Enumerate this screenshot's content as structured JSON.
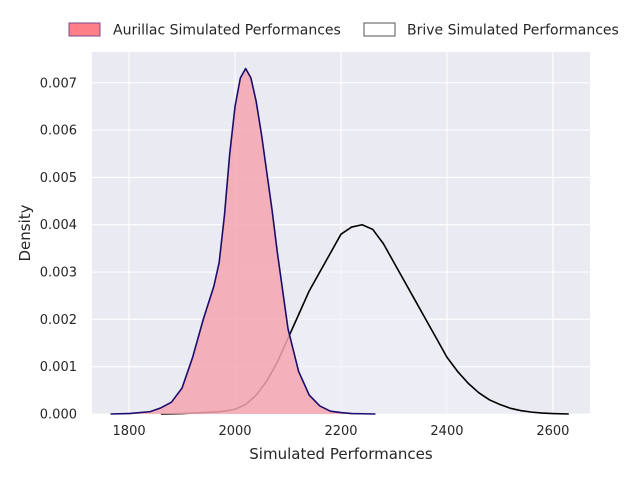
{
  "chart_data": {
    "type": "area",
    "xlabel": "Simulated Performances",
    "ylabel": "Density",
    "xlim": [
      1730,
      2670
    ],
    "ylim": [
      0,
      0.00765
    ],
    "x_ticks": [
      1800,
      2000,
      2200,
      2400,
      2600
    ],
    "y_ticks": [
      0.0,
      0.001,
      0.002,
      0.003,
      0.004,
      0.005,
      0.006,
      0.007
    ],
    "grid": true,
    "legend_position": "top-center",
    "series": [
      {
        "name": "Aurillac Simulated Performances",
        "fill_color": "#f4a6b0",
        "legend_swatch_color": "#ff7f86",
        "line_color": "#1a0d6e",
        "filled": true,
        "x": [
          1765,
          1800,
          1840,
          1860,
          1880,
          1900,
          1920,
          1940,
          1960,
          1970,
          1980,
          1990,
          2000,
          2010,
          2020,
          2030,
          2040,
          2050,
          2060,
          2070,
          2080,
          2090,
          2100,
          2120,
          2140,
          2160,
          2180,
          2200,
          2220,
          2240,
          2265
        ],
        "y": [
          0.0,
          1e-05,
          5e-05,
          0.00013,
          0.00025,
          0.00055,
          0.0012,
          0.002,
          0.0027,
          0.0032,
          0.0042,
          0.0055,
          0.0065,
          0.0071,
          0.0073,
          0.0071,
          0.0066,
          0.0059,
          0.0051,
          0.0043,
          0.0034,
          0.0026,
          0.0018,
          0.0009,
          0.0004,
          0.00017,
          6e-05,
          3e-05,
          1e-05,
          5e-06,
          0.0
        ]
      },
      {
        "name": "Brive Simulated Performances",
        "fill_color": "#eeeef6",
        "legend_swatch_color": "#ffffff",
        "line_color": "#000000",
        "filled": false,
        "x": [
          1860,
          1900,
          1940,
          1960,
          1980,
          2000,
          2020,
          2040,
          2060,
          2080,
          2100,
          2120,
          2140,
          2160,
          2180,
          2200,
          2220,
          2240,
          2260,
          2280,
          2300,
          2320,
          2340,
          2360,
          2380,
          2400,
          2420,
          2440,
          2460,
          2480,
          2500,
          2520,
          2540,
          2560,
          2580,
          2600,
          2630
        ],
        "y": [
          0.0,
          1e-05,
          3e-05,
          4e-05,
          6e-05,
          0.0001,
          0.0002,
          0.0004,
          0.0007,
          0.0011,
          0.0016,
          0.0021,
          0.0026,
          0.003,
          0.0034,
          0.0038,
          0.00395,
          0.004,
          0.0039,
          0.0036,
          0.0032,
          0.0028,
          0.0024,
          0.002,
          0.0016,
          0.0012,
          0.0009,
          0.00065,
          0.00045,
          0.0003,
          0.0002,
          0.00012,
          7e-05,
          4e-05,
          2e-05,
          1e-05,
          0.0
        ]
      }
    ]
  }
}
